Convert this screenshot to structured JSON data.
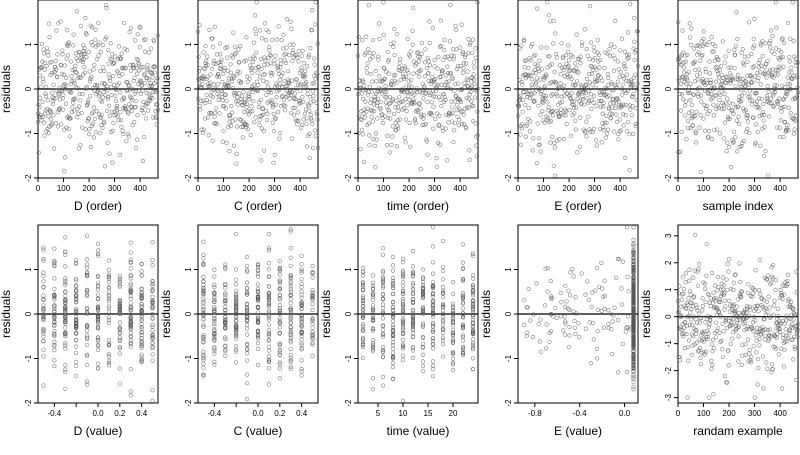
{
  "figure": {
    "seed_note": ""
  },
  "chart_data": [
    {
      "type": "scatter",
      "xlabel": "D (order)",
      "ylabel": "residuals",
      "xlim": [
        0,
        470
      ],
      "ylim": [
        -2,
        2
      ],
      "xticks": [
        0,
        100,
        200,
        300,
        400
      ],
      "yticks": [
        -2,
        -1,
        0,
        1
      ],
      "hline": 0,
      "points": {
        "n": 470,
        "x_mode": "index",
        "x_min": 0,
        "x_max": 470,
        "y_sd": 0.65,
        "y_min": -1.95,
        "y_max": 1.95,
        "seed": 11
      }
    },
    {
      "type": "scatter",
      "xlabel": "C (order)",
      "ylabel": "residuals",
      "xlim": [
        0,
        470
      ],
      "ylim": [
        -2,
        2
      ],
      "xticks": [
        0,
        100,
        200,
        300,
        400
      ],
      "yticks": [
        -2,
        -1,
        0,
        1
      ],
      "hline": 0,
      "points": {
        "n": 470,
        "x_mode": "index",
        "x_min": 0,
        "x_max": 470,
        "y_sd": 0.65,
        "y_min": -1.95,
        "y_max": 1.95,
        "seed": 23
      }
    },
    {
      "type": "scatter",
      "xlabel": "time (order)",
      "ylabel": "residuals",
      "xlim": [
        0,
        470
      ],
      "ylim": [
        -2,
        2
      ],
      "xticks": [
        0,
        100,
        200,
        300,
        400
      ],
      "yticks": [
        -2,
        -1,
        0,
        1
      ],
      "hline": 0,
      "points": {
        "n": 470,
        "x_mode": "index",
        "x_min": 0,
        "x_max": 470,
        "y_sd": 0.65,
        "y_min": -1.95,
        "y_max": 1.95,
        "seed": 37
      }
    },
    {
      "type": "scatter",
      "xlabel": "E (order)",
      "ylabel": "residuals",
      "xlim": [
        0,
        470
      ],
      "ylim": [
        -2,
        2
      ],
      "xticks": [
        0,
        100,
        200,
        300,
        400
      ],
      "yticks": [
        -2,
        -1,
        0,
        1
      ],
      "hline": 0,
      "points": {
        "n": 470,
        "x_mode": "index",
        "x_min": 0,
        "x_max": 470,
        "y_sd": 0.65,
        "y_min": -1.95,
        "y_max": 1.95,
        "seed": 41
      }
    },
    {
      "type": "scatter",
      "xlabel": "sample index",
      "ylabel": "residuals",
      "xlim": [
        0,
        470
      ],
      "ylim": [
        -2,
        2
      ],
      "xticks": [
        0,
        100,
        200,
        300,
        400
      ],
      "yticks": [
        -2,
        -1,
        0,
        1
      ],
      "hline": 0,
      "points": {
        "n": 470,
        "x_mode": "index",
        "x_min": 0,
        "x_max": 470,
        "y_sd": 0.65,
        "y_min": -1.95,
        "y_max": 1.95,
        "seed": 53
      }
    },
    {
      "type": "scatter",
      "xlabel": "D (value)",
      "ylabel": "residuals",
      "xlim": [
        -0.55,
        0.55
      ],
      "ylim": [
        -2,
        2
      ],
      "xticks": [
        -0.4,
        -0.2,
        0.0,
        0.2,
        0.4
      ],
      "xtick_labels": [
        "-0.4",
        "",
        "0.0",
        "0.2",
        "0.4"
      ],
      "yticks": [
        -2,
        -1,
        0,
        1
      ],
      "hline": 0,
      "points": {
        "n": 470,
        "x_mode": "grid",
        "x_levels": [
          -0.5,
          -0.4,
          -0.3,
          -0.2,
          -0.1,
          0.0,
          0.1,
          0.2,
          0.3,
          0.4,
          0.5
        ],
        "y_sd": 0.65,
        "y_min": -1.95,
        "y_max": 1.95,
        "seed": 61
      }
    },
    {
      "type": "scatter",
      "xlabel": "C (value)",
      "ylabel": "residuals",
      "xlim": [
        -0.55,
        0.55
      ],
      "ylim": [
        -2,
        2
      ],
      "xticks": [
        -0.4,
        -0.2,
        0.0,
        0.2,
        0.4
      ],
      "xtick_labels": [
        "-0.4",
        "",
        "0.0",
        "0.2",
        "0.4"
      ],
      "yticks": [
        -2,
        -1,
        0,
        1
      ],
      "hline": 0,
      "points": {
        "n": 470,
        "x_mode": "grid",
        "x_levels": [
          -0.5,
          -0.4,
          -0.3,
          -0.2,
          -0.1,
          0.0,
          0.1,
          0.2,
          0.3,
          0.4,
          0.5
        ],
        "y_sd": 0.65,
        "y_min": -1.95,
        "y_max": 1.95,
        "seed": 71
      }
    },
    {
      "type": "scatter",
      "xlabel": "time (value)",
      "ylabel": "residuals",
      "xlim": [
        1,
        25
      ],
      "ylim": [
        -2,
        2
      ],
      "xticks": [
        5,
        10,
        15,
        20
      ],
      "yticks": [
        -2,
        -1,
        0,
        1
      ],
      "hline": 0,
      "points": {
        "n": 470,
        "x_mode": "grid",
        "x_levels": [
          2,
          4,
          6,
          8,
          10,
          12,
          14,
          16,
          18,
          20,
          22,
          24
        ],
        "y_sd": 0.65,
        "y_min": -1.95,
        "y_max": 1.95,
        "seed": 83
      }
    },
    {
      "type": "scatter",
      "xlabel": "E (value)",
      "ylabel": "residuals",
      "xlim": [
        -0.95,
        0.12
      ],
      "ylim": [
        -2,
        2
      ],
      "xticks": [
        -0.8,
        -0.4,
        0.0
      ],
      "xtick_labels": [
        "-0.8",
        "-0.4",
        "0.0"
      ],
      "yticks": [
        -2,
        -1,
        0,
        1
      ],
      "hline": 0,
      "points": {
        "n": 470,
        "x_mode": "skewed",
        "x_min": -0.9,
        "x_max": 0.08,
        "x_cluster": 0.08,
        "cluster_frac": 0.75,
        "y_sd": 0.65,
        "y_min": -1.95,
        "y_max": 1.95,
        "seed": 97
      }
    },
    {
      "type": "scatter",
      "xlabel": "randam example",
      "ylabel": "residuals",
      "xlim": [
        0,
        470
      ],
      "ylim": [
        -3.2,
        3.4
      ],
      "xticks": [
        0,
        100,
        200,
        300,
        400
      ],
      "yticks": [
        -3,
        -2,
        -1,
        0,
        1,
        2,
        3
      ],
      "hline": 0,
      "points": {
        "n": 470,
        "x_mode": "index",
        "x_min": 0,
        "x_max": 470,
        "y_sd": 1.0,
        "y_min": -3.0,
        "y_max": 3.1,
        "seed": 109
      }
    }
  ]
}
